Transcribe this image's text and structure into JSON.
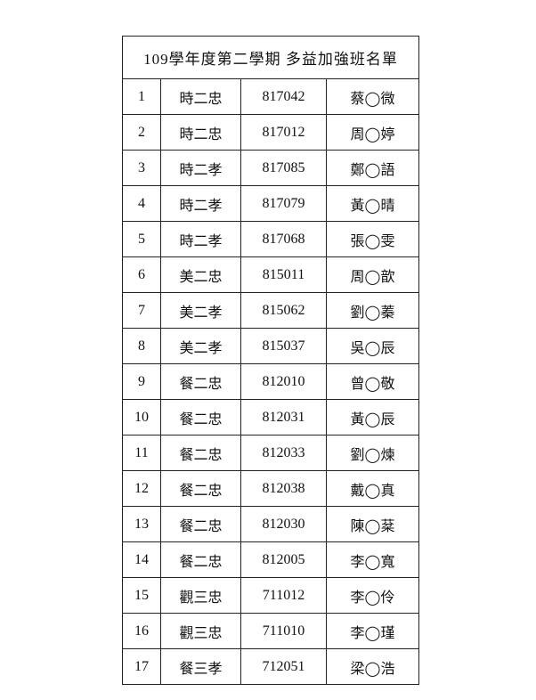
{
  "table": {
    "title": "109學年度第二學期 多益加強班名單",
    "rows": [
      [
        "1",
        "時二忠",
        "817042",
        "蔡◯微"
      ],
      [
        "2",
        "時二忠",
        "817012",
        "周◯婷"
      ],
      [
        "3",
        "時二孝",
        "817085",
        "鄭◯語"
      ],
      [
        "4",
        "時二孝",
        "817079",
        "黃◯晴"
      ],
      [
        "5",
        "時二孝",
        "817068",
        "張◯雯"
      ],
      [
        "6",
        "美二忠",
        "815011",
        "周◯歆"
      ],
      [
        "7",
        "美二孝",
        "815062",
        "劉◯蓁"
      ],
      [
        "8",
        "美二孝",
        "815037",
        "吳◯辰"
      ],
      [
        "9",
        "餐二忠",
        "812010",
        "曾◯敬"
      ],
      [
        "10",
        "餐二忠",
        "812031",
        "黃◯辰"
      ],
      [
        "11",
        "餐二忠",
        "812033",
        "劉◯煉"
      ],
      [
        "12",
        "餐二忠",
        "812038",
        "戴◯真"
      ],
      [
        "13",
        "餐二忠",
        "812030",
        "陳◯棻"
      ],
      [
        "14",
        "餐二忠",
        "812005",
        "李◯寬"
      ],
      [
        "15",
        "觀三忠",
        "711012",
        "李◯伶"
      ],
      [
        "16",
        "觀三忠",
        "711010",
        "李◯瑾"
      ],
      [
        "17",
        "餐三孝",
        "712051",
        "梁◯浩"
      ]
    ]
  }
}
